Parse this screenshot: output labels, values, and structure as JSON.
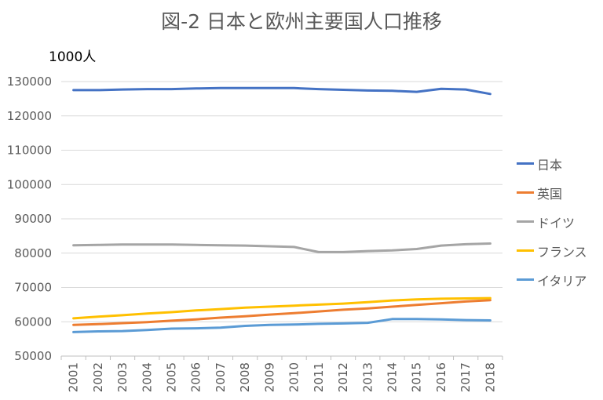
{
  "title": "図-2 日本と欧州主要国人口推移",
  "unit_label": "1000人",
  "chart_data": {
    "type": "line",
    "title": "図-2 日本と欧州主要国人口推移",
    "ylabel": "1000人",
    "xlabel": "",
    "ylim": [
      50000,
      130000
    ],
    "yticks": [
      50000,
      60000,
      70000,
      80000,
      90000,
      100000,
      110000,
      120000,
      130000
    ],
    "grid": true,
    "legend_position": "right",
    "x": [
      "2001",
      "2002",
      "2003",
      "2004",
      "2005",
      "2006",
      "2007",
      "2008",
      "2009",
      "2010",
      "2011",
      "2012",
      "2013",
      "2014",
      "2015",
      "2016",
      "2017",
      "2018"
    ],
    "series": [
      {
        "name": "日本",
        "color": "#4472C4",
        "values": [
          127500,
          127500,
          127700,
          127800,
          127800,
          128000,
          128100,
          128100,
          128100,
          128100,
          127800,
          127600,
          127400,
          127300,
          127000,
          127900,
          127700,
          126400
        ]
      },
      {
        "name": "英国",
        "color": "#ED7D31",
        "values": [
          59100,
          59300,
          59600,
          59900,
          60300,
          60700,
          61200,
          61600,
          62100,
          62500,
          63000,
          63500,
          63900,
          64400,
          64900,
          65400,
          65900,
          66300
        ]
      },
      {
        "name": "ドイツ",
        "color": "#A5A5A5",
        "values": [
          82300,
          82400,
          82500,
          82500,
          82500,
          82400,
          82300,
          82200,
          82000,
          81800,
          80300,
          80300,
          80600,
          80800,
          81200,
          82200,
          82600,
          82800
        ]
      },
      {
        "name": "フランス",
        "color": "#FFC000",
        "values": [
          61000,
          61500,
          61900,
          62400,
          62800,
          63300,
          63700,
          64100,
          64400,
          64700,
          65000,
          65300,
          65700,
          66200,
          66500,
          66700,
          66800,
          66900
        ]
      },
      {
        "name": "イタリア",
        "color": "#5B9BD5",
        "values": [
          57000,
          57200,
          57300,
          57600,
          58000,
          58100,
          58300,
          58800,
          59100,
          59200,
          59400,
          59500,
          59700,
          60800,
          60800,
          60700,
          60500,
          60400
        ]
      }
    ]
  }
}
